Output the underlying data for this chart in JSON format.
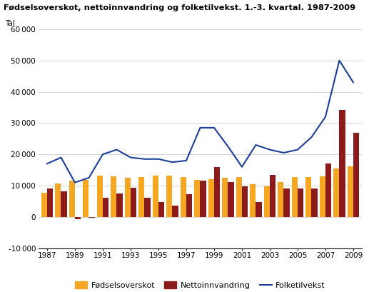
{
  "title": "Fødselsoverskot, nettoinnvandring og folketilvekst. 1.-3. kvartal. 1987-2009",
  "ylabel": "Tal",
  "years": [
    1987,
    1988,
    1989,
    1990,
    1991,
    1992,
    1993,
    1994,
    1995,
    1996,
    1997,
    1998,
    1999,
    2000,
    2001,
    2002,
    2003,
    2004,
    2005,
    2006,
    2007,
    2008,
    2009
  ],
  "fodselsoverskot": [
    7800,
    10700,
    11500,
    11800,
    13100,
    13000,
    12500,
    12700,
    13200,
    13200,
    12700,
    11800,
    12000,
    12400,
    12700,
    10500,
    9800,
    11200,
    12700,
    12700,
    13000,
    15500,
    16200
  ],
  "nettoinnvandring": [
    9200,
    8100,
    -800,
    -300,
    6200,
    7400,
    9300,
    6100,
    4800,
    3700,
    7200,
    11600,
    16000,
    11200,
    9700,
    4700,
    13400,
    9200,
    9200,
    9200,
    17000,
    34200,
    26900
  ],
  "folketilvekst": [
    17000,
    19000,
    11000,
    12500,
    20000,
    21500,
    19000,
    18500,
    18500,
    17500,
    18000,
    28500,
    28500,
    22500,
    16000,
    23000,
    21500,
    20500,
    21500,
    25500,
    32000,
    50000,
    43000
  ],
  "bar_color_fodsels": "#F5A623",
  "bar_color_netto": "#8B1A1A",
  "line_color": "#1C3F9E",
  "ylim": [
    -10000,
    60000
  ],
  "yticks": [
    -10000,
    0,
    10000,
    20000,
    30000,
    40000,
    50000,
    60000
  ],
  "legend_labels": [
    "Fødselsoverskot",
    "Nettoinnvandring",
    "Folketilvekst"
  ],
  "background_color": "#ffffff",
  "grid_color": "#cccccc"
}
